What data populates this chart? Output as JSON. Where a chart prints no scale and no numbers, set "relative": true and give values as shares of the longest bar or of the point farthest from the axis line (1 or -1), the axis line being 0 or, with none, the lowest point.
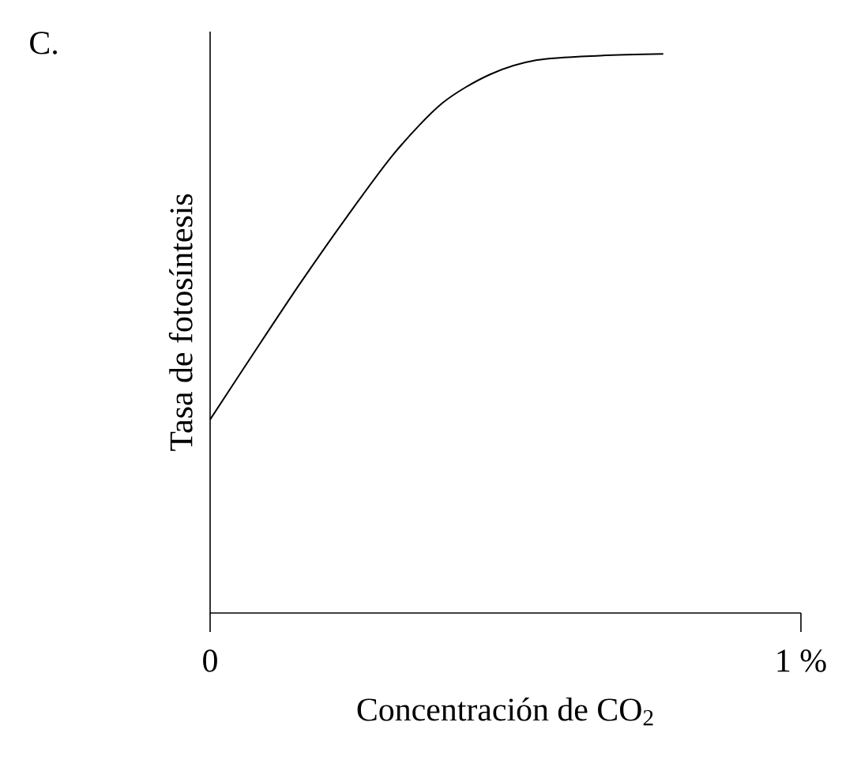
{
  "chart_data": {
    "type": "line",
    "title": "C.",
    "xlabel": "Concentración de CO$_{2}$",
    "ylabel": "Tasa de fotosíntesis",
    "relative": true,
    "tick_labels": "x",
    "xlim": [
      0,
      1
    ],
    "xticks": [
      0,
      {
        "value": 1,
        "label": "1 %"
      }
    ],
    "marker": "none",
    "line_style": "solid",
    "series": [
      {
        "color": "#000000",
        "x": [
          0,
          0.072,
          0.152,
          0.233,
          0.313,
          0.393,
          0.473,
          0.553,
          0.66,
          0.767
        ],
        "values": [
          0.346,
          0.462,
          0.589,
          0.711,
          0.824,
          0.912,
          0.963,
          0.989,
          0.997,
          1.0
        ]
      }
    ]
  }
}
